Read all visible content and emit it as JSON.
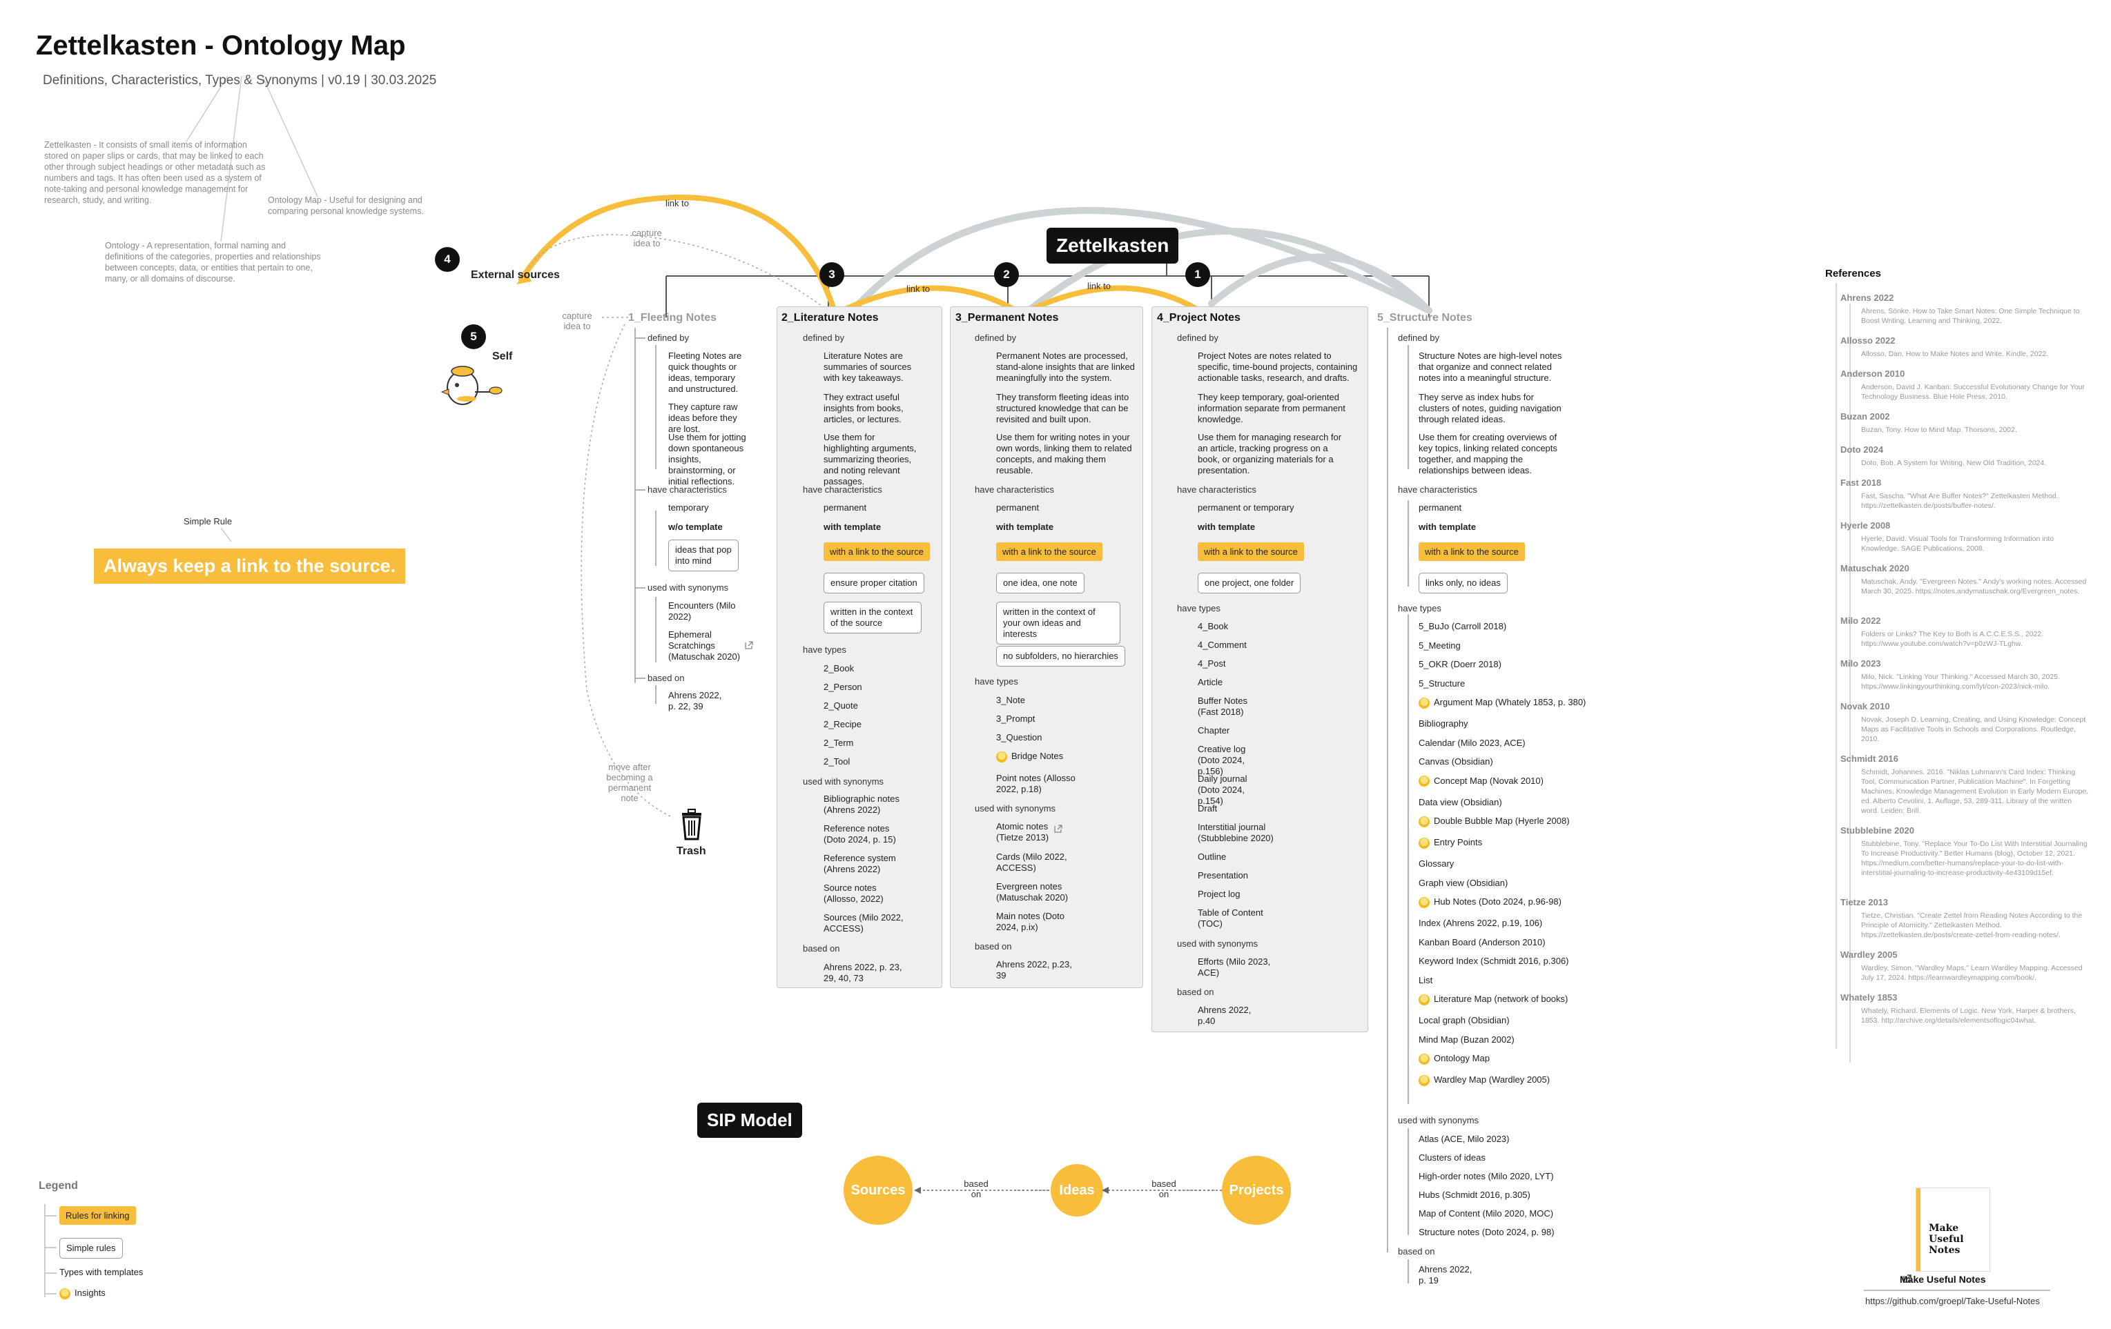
{
  "header": {
    "title": "Zettelkasten - Ontology Map",
    "subtitle": "Definitions, Characteristics, Types & Synonyms | v0.19 | 30.03.2025"
  },
  "definitions": {
    "zettelkasten": "Zettelkasten - It consists of small items of information stored on paper slips or cards, that may be linked to each other through subject headings or other metadata such as numbers and tags. It has often been used as a system of note-taking and personal knowledge management for research, study, and writing.",
    "ontology_map": "Ontology Map - Useful for designing and comparing personal knowledge systems.",
    "ontology": "Ontology - A representation, formal naming and definitions of the categories, properties and relationships between concepts, data, or entities that pertain to one, many, or all domains of discourse."
  },
  "root": {
    "label": "Zettelkasten"
  },
  "edges": {
    "link_to_top": "link to",
    "link_to_mid": "link to",
    "link_to_right": "link to",
    "capture_top": "capture idea to",
    "capture_self": "capture idea to",
    "move_after": "move after becoming a permanent note"
  },
  "external": {
    "badge": "4",
    "label": "External sources"
  },
  "self": {
    "badge": "5",
    "label": "Self"
  },
  "trash": {
    "label": "Trash"
  },
  "simple_rule": {
    "caption": "Simple Rule",
    "text": "Always keep a link to the source."
  },
  "columns": {
    "fleeting": {
      "title": "1_Fleeting Notes",
      "defined_by": "defined by",
      "defs": [
        "Fleeting Notes are quick thoughts or ideas, temporary and unstructured.",
        "They capture raw ideas before they are lost.",
        "Use them for jotting down spontaneous insights, brainstorming, or initial reflections."
      ],
      "have_char": "have characteristics",
      "chars": [
        "temporary",
        "w/o template"
      ],
      "char_box": "ideas that pop into mind",
      "used_syn": "used with synonyms",
      "syns": [
        "Encounters (Milo 2022)",
        "Ephemeral Scratchings (Matuschak 2020)"
      ],
      "based_on": "based on",
      "based": "Ahrens 2022, p. 22, 39"
    },
    "literature": {
      "badge": "3",
      "title": "2_Literature Notes",
      "defined_by": "defined by",
      "defs": [
        "Literature Notes are summaries of sources with key takeaways.",
        "They extract useful insights from books, articles, or lectures.",
        "Use them for highlighting arguments, summarizing theories, and noting relevant passages."
      ],
      "have_char": "have characteristics",
      "chars": [
        "permanent",
        "with template"
      ],
      "rule": "with a link to the source",
      "boxes": [
        "ensure proper citation",
        "written in the context of the source"
      ],
      "have_types": "have types",
      "types": [
        "2_Book",
        "2_Person",
        "2_Quote",
        "2_Recipe",
        "2_Term",
        "2_Tool"
      ],
      "used_syn": "used with synonyms",
      "syns": [
        "Bibliographic notes (Ahrens 2022)",
        "Reference notes (Doto 2024, p. 15)",
        "Reference system (Ahrens 2022)",
        "Source notes (Allosso, 2022)",
        "Sources (Milo 2022, ACCESS)"
      ],
      "based_on": "based on",
      "based": "Ahrens 2022, p. 23, 29, 40, 73"
    },
    "permanent": {
      "badge": "2",
      "title": "3_Permanent Notes",
      "defined_by": "defined by",
      "defs": [
        "Permanent Notes are processed, stand-alone insights that are linked meaningfully into the system.",
        "They transform fleeting ideas into structured knowledge that can be revisited and built upon.",
        "Use them for writing notes in your own words, linking them to related concepts, and making them reusable."
      ],
      "have_char": "have characteristics",
      "chars": [
        "permanent",
        "with template"
      ],
      "rule": "with a link to the source",
      "boxes": [
        "one idea, one note",
        "written in the context of your own ideas and interests",
        "no subfolders, no hierarchies"
      ],
      "have_types": "have types",
      "types": [
        "3_Note",
        "3_Prompt",
        "3_Question"
      ],
      "bridge": "Bridge Notes",
      "point": "Point notes (Allosso 2022, p.18)",
      "used_syn": "used with synonyms",
      "syns": [
        "Atomic notes (Tietze 2013)",
        "Cards (Milo 2022, ACCESS)",
        "Evergreen notes (Matuschak 2020)",
        "Main notes (Doto 2024, p.ix)"
      ],
      "based_on": "based on",
      "based": "Ahrens 2022, p.23, 39"
    },
    "project": {
      "badge": "1",
      "title": "4_Project Notes",
      "defined_by": "defined by",
      "defs": [
        "Project Notes are notes related to specific, time-bound projects, containing actionable tasks, research, and drafts.",
        "They keep temporary, goal-oriented information separate from permanent knowledge.",
        "Use them for managing research for an article, tracking progress on a book, or organizing materials for a presentation."
      ],
      "have_char": "have characteristics",
      "chars": [
        "permanent or temporary",
        "with template"
      ],
      "rule": "with a link to the source",
      "boxes": [
        "one project, one folder"
      ],
      "have_types": "have types",
      "types": [
        "4_Book",
        "4_Comment",
        "4_Post",
        "Article",
        "Buffer Notes (Fast 2018)",
        "Chapter",
        "Creative log (Doto 2024, p.156)",
        "Daily journal (Doto 2024, p.154)",
        "Draft",
        "Interstitial journal (Stubblebine 2020)",
        "Outline",
        "Presentation",
        "Project log",
        "Table of Content (TOC)"
      ],
      "used_syn": "used with synonyms",
      "syns": [
        "Efforts (Milo 2023, ACE)"
      ],
      "based_on": "based on",
      "based": "Ahrens 2022, p.40"
    },
    "structure": {
      "title": "5_Structure Notes",
      "defined_by": "defined by",
      "defs": [
        "Structure Notes are high-level notes that organize and connect related notes into a meaningful structure.",
        "They serve as index hubs for clusters of notes, guiding navigation through related ideas.",
        "Use them for creating overviews of key topics, linking related concepts together, and mapping the relationships between ideas."
      ],
      "have_char": "have characteristics",
      "chars": [
        "permanent",
        "with template"
      ],
      "rule": "with a link to the source",
      "boxes": [
        "links only, no ideas"
      ],
      "have_types": "have types",
      "types": [
        {
          "t": "5_BuJo (Carroll 2018)",
          "i": false
        },
        {
          "t": "5_Meeting",
          "i": false
        },
        {
          "t": "5_OKR (Doerr 2018)",
          "i": false
        },
        {
          "t": "5_Structure",
          "i": false
        },
        {
          "t": "Argument Map (Whately 1853, p. 380)",
          "i": true
        },
        {
          "t": "Bibliography",
          "i": false
        },
        {
          "t": "Calendar (Milo 2023, ACE)",
          "i": false
        },
        {
          "t": "Canvas (Obsidian)",
          "i": false
        },
        {
          "t": "Concept Map (Novak 2010)",
          "i": true
        },
        {
          "t": "Data view (Obsidian)",
          "i": false
        },
        {
          "t": "Double Bubble Map (Hyerle 2008)",
          "i": true
        },
        {
          "t": "Entry Points",
          "i": true
        },
        {
          "t": "Glossary",
          "i": false
        },
        {
          "t": "Graph view (Obsidian)",
          "i": false
        },
        {
          "t": "Hub Notes (Doto 2024, p.96-98)",
          "i": true
        },
        {
          "t": "Index (Ahrens 2022, p.19, 106)",
          "i": false
        },
        {
          "t": "Kanban Board (Anderson 2010)",
          "i": false
        },
        {
          "t": "Keyword Index (Schmidt 2016, p.306)",
          "i": false
        },
        {
          "t": "List",
          "i": false
        },
        {
          "t": "Literature Map (network of books)",
          "i": true
        },
        {
          "t": "Local graph (Obsidian)",
          "i": false
        },
        {
          "t": "Mind Map (Buzan 2002)",
          "i": false
        },
        {
          "t": "Ontology Map",
          "i": true
        },
        {
          "t": "Wardley Map (Wardley 2005)",
          "i": true
        }
      ],
      "used_syn": "used with synonyms",
      "syns": [
        "Atlas (ACE, Milo 2023)",
        "Clusters of ideas",
        "High-order notes (Milo 2020, LYT)",
        "Hubs (Schmidt 2016, p.305)",
        "Map of Content (Milo 2020, MOC)",
        "Structure notes (Doto 2024, p. 98)"
      ],
      "based_on": "based on",
      "based": "Ahrens 2022, p. 19"
    }
  },
  "sip": {
    "title": "SIP Model",
    "sources": "Sources",
    "ideas": "Ideas",
    "projects": "Projects",
    "based_on_1": "based on",
    "based_on_2": "based on"
  },
  "legend": {
    "title": "Legend",
    "rules": "Rules for linking",
    "simple": "Simple rules",
    "types": "Types with templates",
    "insights": "Insights"
  },
  "references": {
    "title": "References",
    "items": [
      {
        "k": "Ahrens 2022",
        "v": "Ahrens, Sönke. How to Take Smart Notes: One Simple Technique to Boost Writing, Learning and Thinking, 2022."
      },
      {
        "k": "Allosso 2022",
        "v": "Allosso, Dan. How to Make Notes and Write. Kindle, 2022."
      },
      {
        "k": "Anderson 2010",
        "v": "Anderson, David J. Kanban: Successful Evolutionary Change for Your Technology Business. Blue Hole Press, 2010."
      },
      {
        "k": "Buzan 2002",
        "v": "Buzan, Tony. How to Mind Map. Thorsons, 2002."
      },
      {
        "k": "Doto 2024",
        "v": "Doto, Bob. A System for Writing. New Old Tradition, 2024."
      },
      {
        "k": "Fast 2018",
        "v": "Fast, Sascha. \"What Are Buffer Notes?\" Zettelkasten Method. https://zettelkasten.de/posts/buffer-notes/."
      },
      {
        "k": "Hyerle 2008",
        "v": "Hyerle, David. Visual Tools for Transforming Information into Knowledge. SAGE Publications, 2008."
      },
      {
        "k": "Matuschak 2020",
        "v": "Matuschak, Andy. \"Evergreen Notes.\" Andy's working notes. Accessed March 30, 2025. https://notes.andymatuschak.org/Evergreen_notes."
      },
      {
        "k": "Milo 2022",
        "v": "Folders or Links? The Key to Both is A.C.C.E.S.S., 2022. https://www.youtube.com/watch?v=p0zWJ-TLghw."
      },
      {
        "k": "Milo 2023",
        "v": "Milo, Nick. \"Linking Your Thinking.\" Accessed March 30, 2025. https://www.linkingyourthinking.com/lyt/con-2023/nick-milo."
      },
      {
        "k": "Novak 2010",
        "v": "Novak, Joseph D. Learning, Creating, and Using Knowledge: Concept Maps as Facilitative Tools in Schools and Corporations. Routledge, 2010."
      },
      {
        "k": "Schmidt 2016",
        "v": "Schmidt, Johannes. 2016. \"Niklas Luhmann's Card Index: Thinking Tool, Communication Partner, Publication Machine\". In Forgetting Machines. Knowledge Management Evolution in Early Modern Europe, ed. Alberto Cevolini, 1. Auflage, 53, 289-311. Library of the written word. Leiden: Brill."
      },
      {
        "k": "Stubblebine 2020",
        "v": "Stubblebine, Tony. \"Replace Your To-Do List With Interstitial Journaling To Increase Productivity.\" Better Humans (blog), October 12, 2021. https://medium.com/better-humans/replace-your-to-do-list-with-interstitial-journaling-to-increase-productivity-4e43109d15ef."
      },
      {
        "k": "Tietze 2013",
        "v": "Tietze, Christian. \"Create Zettel from Reading Notes According to the Principle of Atomicity.\" Zettelkasten Method. https://zettelkasten.de/posts/create-zettel-from-reading-notes/."
      },
      {
        "k": "Wardley 2005",
        "v": "Wardley, Simon. \"Wardley Maps.\" Learn Wardley Mapping. Accessed July 17, 2024. https://learnwardleymapping.com/book/."
      },
      {
        "k": "Whately 1853",
        "v": "Whately, Richard. Elements of Logic. New York, Harper & brothers, 1853. http://archive.org/details/elementsoflogic04what."
      }
    ]
  },
  "book": {
    "label": "Make Useful Notes",
    "url": "https://github.com/groepl/Take-Useful-Notes",
    "cover_title": "Make Useful Notes"
  },
  "colors": {
    "accent": "#f8bd3a",
    "panel": "#efefef",
    "ink": "#111111"
  }
}
